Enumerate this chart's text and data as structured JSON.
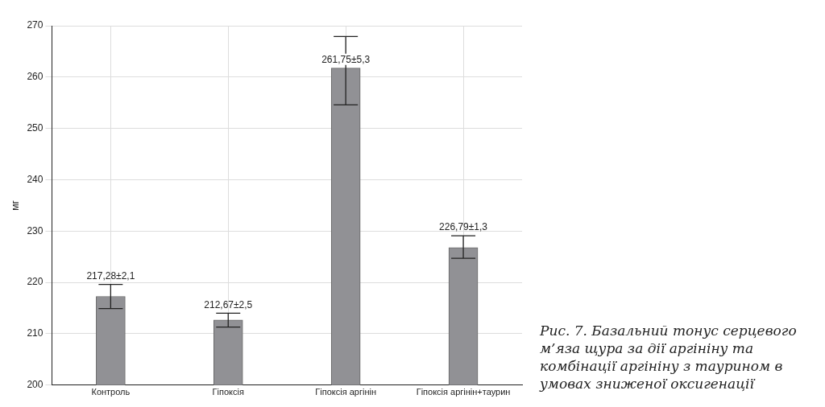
{
  "chart_data": {
    "type": "bar",
    "ylabel": "мг",
    "categories": [
      "Контроль",
      "Гіпоксія",
      "Гіпоксія аргінін",
      "Гіпоксія аргінін+таурин"
    ],
    "values": [
      217.28,
      212.67,
      261.75,
      226.79
    ],
    "errors": [
      [
        214.9,
        219.6
      ],
      [
        211.3,
        214.0
      ],
      [
        254.6,
        267.9
      ],
      [
        224.7,
        229.1
      ]
    ],
    "value_labels": [
      "217,28±2,1",
      "212,67±2,5",
      "261,75±5,3",
      "226,79±1,3"
    ],
    "color": "#919195",
    "ylim": [
      200,
      270
    ],
    "yticks": [
      200,
      210,
      220,
      230,
      240,
      250,
      260,
      270
    ],
    "grid": true,
    "legend": false,
    "annotations": [
      "Рис. 7. Базальний тонус серцевого м’яза щура за дії аргініну та комбінації аргініну з таурином в умовах зниженої оксигенації"
    ]
  }
}
